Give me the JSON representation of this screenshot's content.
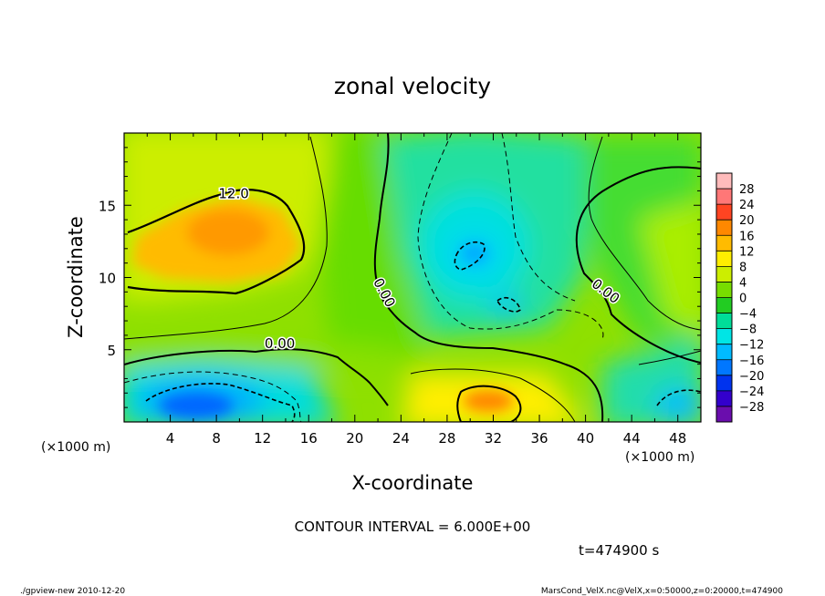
{
  "chart_data": {
    "type": "heatmap",
    "title": "zonal velocity",
    "xlabel": "X-coordinate",
    "ylabel": "Z-coordinate",
    "x_unit_left": "(×1000 m)",
    "x_unit_right": "(×1000 m)",
    "xlim": [
      0,
      50
    ],
    "ylim": [
      0,
      20
    ],
    "x_ticks": [
      4,
      8,
      12,
      16,
      20,
      24,
      28,
      32,
      36,
      40,
      44,
      48
    ],
    "y_ticks": [
      5,
      10,
      15
    ],
    "colorbar_ticks": [
      28,
      24,
      20,
      16,
      12,
      8,
      4,
      0,
      -4,
      -8,
      -12,
      -16,
      -20,
      -24,
      -28
    ],
    "contour_labels": [
      {
        "text": "12.0",
        "x": 9.5,
        "z": 15.5
      },
      {
        "text": "0.00",
        "x": 13.5,
        "z": 5.1
      },
      {
        "text": "0.00",
        "x": 22.2,
        "z": 8.8
      },
      {
        "text": "0.00",
        "x": 41.5,
        "z": 8.8
      }
    ],
    "contour_interval_text": "CONTOUR INTERVAL = 6.000E+00",
    "time_text": "t=474900 s",
    "footer_left": "./gpview-new  2010-12-20",
    "footer_right": "MarsCond_VelX.nc@VelX,x=0:50000,z=0:20000,t=474900",
    "colors": {
      "scale": [
        "#6a0dad",
        "#3300cc",
        "#0033ee",
        "#0077ff",
        "#00bbff",
        "#00e5e5",
        "#00dd99",
        "#22cc22",
        "#77dd00",
        "#ccee00",
        "#ffee00",
        "#ffbb00",
        "#ff8800",
        "#ff4422",
        "#ff7777",
        "#ffbbbb"
      ]
    }
  }
}
